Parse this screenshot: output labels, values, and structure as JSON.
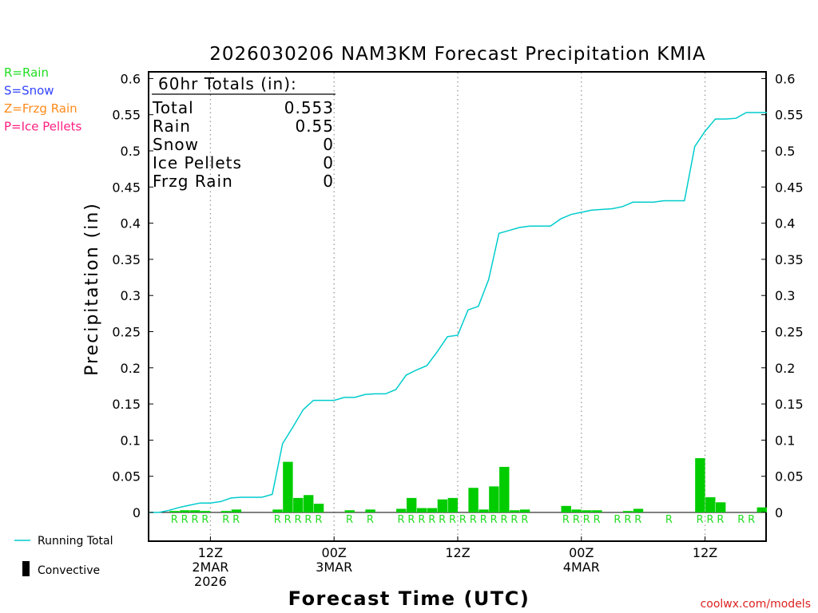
{
  "colors": {
    "rain": "#00cc00",
    "snow": "#3344ff",
    "frzg_rain": "#ff8a1a",
    "ice_pellets": "#ff2080",
    "running_total": "#00cccc",
    "credit": "#dd2222"
  },
  "legend_types": [
    {
      "label": "R=Rain",
      "color": "#22dd22"
    },
    {
      "label": "S=Snow",
      "color": "#3344ff"
    },
    {
      "label": "Z=Frzg Rain",
      "color": "#ff8a1a"
    },
    {
      "label": "P=Ice Pellets",
      "color": "#ff2080"
    }
  ],
  "legend_lines": {
    "running_total": "Running Total",
    "convective": "Convective"
  },
  "totals": {
    "header": "60hr Totals (in):",
    "rows": [
      {
        "label": "Total",
        "value": "0.553"
      },
      {
        "label": "Rain",
        "value": "0.55"
      },
      {
        "label": "Snow",
        "value": "0"
      },
      {
        "label": "Ice Pellets",
        "value": "0"
      },
      {
        "label": "Frzg Rain",
        "value": "0"
      }
    ]
  },
  "credit": "coolwx.com/models",
  "chart_data": {
    "type": "bar",
    "title": "2026030206 NAM3KM Forecast Precipitation KMIA",
    "xlabel": "Forecast Time (UTC)",
    "ylabel": "Precipitation (in)",
    "x_unit": "forecast hour",
    "xlim": [
      0,
      60
    ],
    "ylim": [
      -0.05,
      0.61
    ],
    "y_ticks": [
      0,
      0.05,
      0.1,
      0.15,
      0.2,
      0.25,
      0.3,
      0.35,
      0.4,
      0.45,
      0.5,
      0.55,
      0.6
    ],
    "y_tick_labels": [
      "0",
      "0.05",
      "0.1",
      "0.15",
      "0.2",
      "0.25",
      "0.3",
      "0.35",
      "0.4",
      "0.45",
      "0.5",
      "0.55",
      "0.6"
    ],
    "x_ticks": [
      {
        "hour": 6,
        "lines": [
          "12Z",
          "2MAR",
          "2026"
        ]
      },
      {
        "hour": 18,
        "lines": [
          "00Z",
          "3MAR"
        ]
      },
      {
        "hour": 30,
        "lines": [
          "12Z"
        ]
      },
      {
        "hour": 42,
        "lines": [
          "00Z",
          "4MAR"
        ]
      },
      {
        "hour": 54,
        "lines": [
          "12Z"
        ]
      }
    ],
    "hourly_precip_hours": [
      1,
      2,
      3,
      4,
      5,
      6,
      7,
      8,
      9,
      10,
      11,
      12,
      13,
      14,
      15,
      16,
      17,
      18,
      19,
      20,
      21,
      22,
      23,
      24,
      25,
      26,
      27,
      28,
      29,
      30,
      31,
      32,
      33,
      34,
      35,
      36,
      37,
      38,
      39,
      40,
      41,
      42,
      43,
      44,
      45,
      46,
      47,
      48,
      49,
      50,
      51,
      52,
      53,
      54,
      55,
      56,
      57,
      58,
      59,
      60
    ],
    "hourly_precip_values": [
      0.0,
      0.0,
      0.002,
      0.003,
      0.003,
      0.002,
      0.0,
      0.002,
      0.004,
      0.0,
      0.0,
      0.0,
      0.004,
      0.07,
      0.02,
      0.024,
      0.012,
      0.0,
      0.0,
      0.003,
      0.0,
      0.004,
      0.0,
      0.0,
      0.005,
      0.02,
      0.006,
      0.006,
      0.018,
      0.02,
      0.0,
      0.034,
      0.004,
      0.036,
      0.063,
      0.003,
      0.004,
      0.0,
      0.0,
      0.0,
      0.009,
      0.004,
      0.003,
      0.003,
      0.0,
      0.0,
      0.002,
      0.005,
      0.0,
      0.0,
      0.0,
      0.0,
      0.0,
      0.075,
      0.021,
      0.014,
      0.0,
      0.0,
      0.0,
      0.007
    ],
    "precip_type_marks": [
      {
        "hour": 3,
        "type": "R"
      },
      {
        "hour": 4,
        "type": "R"
      },
      {
        "hour": 5,
        "type": "R"
      },
      {
        "hour": 6,
        "type": "R"
      },
      {
        "hour": 8,
        "type": "R"
      },
      {
        "hour": 9,
        "type": "R"
      },
      {
        "hour": 13,
        "type": "R"
      },
      {
        "hour": 14,
        "type": "R"
      },
      {
        "hour": 15,
        "type": "R"
      },
      {
        "hour": 16,
        "type": "R"
      },
      {
        "hour": 17,
        "type": "R"
      },
      {
        "hour": 20,
        "type": "R"
      },
      {
        "hour": 22,
        "type": "R"
      },
      {
        "hour": 25,
        "type": "R"
      },
      {
        "hour": 26,
        "type": "R"
      },
      {
        "hour": 27,
        "type": "R"
      },
      {
        "hour": 28,
        "type": "R"
      },
      {
        "hour": 29,
        "type": "R"
      },
      {
        "hour": 30,
        "type": "R"
      },
      {
        "hour": 31,
        "type": "R"
      },
      {
        "hour": 32,
        "type": "R"
      },
      {
        "hour": 33,
        "type": "R"
      },
      {
        "hour": 34,
        "type": "R"
      },
      {
        "hour": 35,
        "type": "R"
      },
      {
        "hour": 36,
        "type": "R"
      },
      {
        "hour": 37,
        "type": "R"
      },
      {
        "hour": 41,
        "type": "R"
      },
      {
        "hour": 42,
        "type": "R"
      },
      {
        "hour": 43,
        "type": "R"
      },
      {
        "hour": 44,
        "type": "R"
      },
      {
        "hour": 46,
        "type": "R"
      },
      {
        "hour": 47,
        "type": "R"
      },
      {
        "hour": 48,
        "type": "R"
      },
      {
        "hour": 51,
        "type": "R"
      },
      {
        "hour": 54,
        "type": "R"
      },
      {
        "hour": 55,
        "type": "R"
      },
      {
        "hour": 56,
        "type": "R"
      },
      {
        "hour": 58,
        "type": "R"
      },
      {
        "hour": 59,
        "type": "R"
      }
    ],
    "running_total_hours": [
      0,
      1,
      2,
      3,
      4,
      5,
      6,
      7,
      8,
      9,
      10,
      11,
      12,
      12.5,
      13,
      14,
      15,
      16,
      17,
      18,
      19,
      20,
      21,
      22,
      23,
      24,
      25,
      26,
      27,
      28,
      29,
      30,
      31,
      32,
      33,
      34,
      35,
      36,
      37,
      38,
      39,
      40,
      41,
      42,
      43,
      44,
      45,
      46,
      47,
      48,
      49,
      50,
      51,
      52,
      53,
      54,
      55,
      56,
      57,
      58,
      59,
      60
    ],
    "running_total_values": [
      0.0,
      0.0,
      0.003,
      0.007,
      0.01,
      0.013,
      0.013,
      0.015,
      0.02,
      0.021,
      0.021,
      0.021,
      0.025,
      0.06,
      0.095,
      0.118,
      0.142,
      0.155,
      0.155,
      0.155,
      0.159,
      0.159,
      0.163,
      0.164,
      0.164,
      0.17,
      0.19,
      0.197,
      0.203,
      0.222,
      0.243,
      0.245,
      0.28,
      0.285,
      0.322,
      0.386,
      0.39,
      0.394,
      0.396,
      0.396,
      0.396,
      0.406,
      0.412,
      0.415,
      0.418,
      0.419,
      0.42,
      0.423,
      0.429,
      0.429,
      0.429,
      0.431,
      0.431,
      0.431,
      0.506,
      0.527,
      0.544,
      0.544,
      0.545,
      0.553,
      0.553,
      0.553
    ]
  }
}
